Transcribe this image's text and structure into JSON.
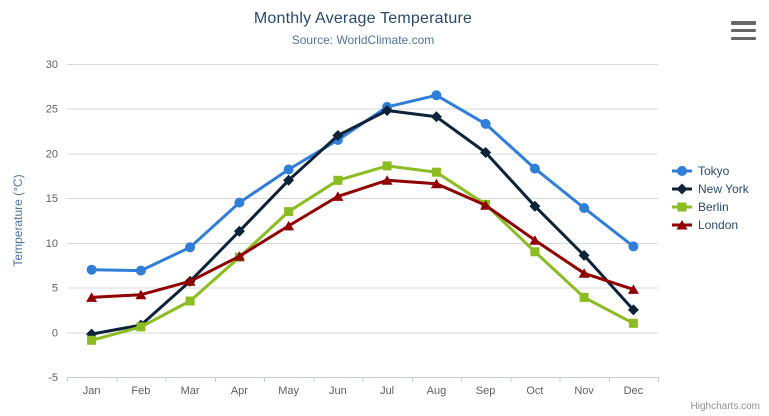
{
  "credits": {
    "label": "Highcharts.com"
  },
  "export_menu": {
    "icon": "hamburger-icon"
  },
  "theme": {
    "background": "#ffffff",
    "title_color": "#274b6d",
    "subtitle_color": "#4d759e",
    "axis_title_color": "#4d759e",
    "axis_label_color": "#606060",
    "grid_color": "#d8d8d8",
    "axis_line_color": "#c0d0e0",
    "legend_text_color": "#274b6d",
    "credits_color": "#909090",
    "menu_icon_color": "#666666"
  },
  "chart_data": {
    "type": "line",
    "title": "Monthly Average Temperature",
    "subtitle": "Source: WorldClimate.com",
    "xlabel": "",
    "ylabel": "Temperature (°C)",
    "ylim": [
      -5,
      30
    ],
    "ytick_interval": 5,
    "grid": true,
    "legend_position": "right",
    "categories": [
      "Jan",
      "Feb",
      "Mar",
      "Apr",
      "May",
      "Jun",
      "Jul",
      "Aug",
      "Sep",
      "Oct",
      "Nov",
      "Dec"
    ],
    "series": [
      {
        "name": "Tokyo",
        "color": "#2f7ed8",
        "marker": "circle",
        "values": [
          7.0,
          6.9,
          9.5,
          14.5,
          18.2,
          21.5,
          25.2,
          26.5,
          23.3,
          18.3,
          13.9,
          9.6
        ]
      },
      {
        "name": "New York",
        "color": "#0d233a",
        "marker": "diamond",
        "values": [
          -0.2,
          0.8,
          5.7,
          11.3,
          17.0,
          22.0,
          24.8,
          24.1,
          20.1,
          14.1,
          8.6,
          2.5
        ]
      },
      {
        "name": "Berlin",
        "color": "#8bbc21",
        "marker": "square",
        "values": [
          -0.9,
          0.6,
          3.5,
          8.4,
          13.5,
          17.0,
          18.6,
          17.9,
          14.3,
          9.0,
          3.9,
          1.0
        ]
      },
      {
        "name": "London",
        "color": "#910000",
        "marker": "triangle",
        "values": [
          3.9,
          4.2,
          5.7,
          8.5,
          11.9,
          15.2,
          17.0,
          16.6,
          14.2,
          10.3,
          6.6,
          4.8
        ]
      }
    ]
  }
}
